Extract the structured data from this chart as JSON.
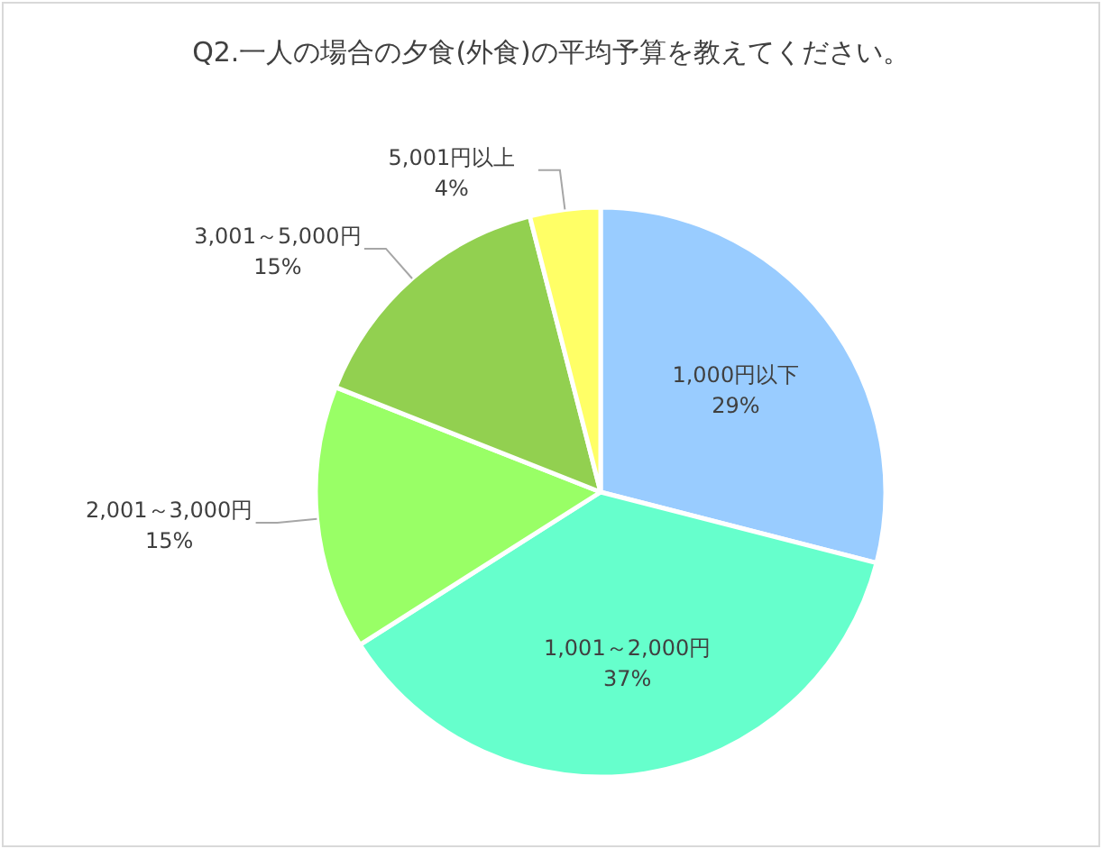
{
  "chart_data": {
    "type": "pie",
    "title": "Q2.一人の場合の夕食(外食)の平均予算を教えてください。",
    "categories": [
      "1,000円以下",
      "1,001～2,000円",
      "2,001～3,000円",
      "3,001～5,000円",
      "5,001円以上"
    ],
    "values": [
      29,
      37,
      15,
      15,
      4
    ],
    "colors": [
      "#99ccff",
      "#66ffcc",
      "#99ff66",
      "#92d050",
      "#ffff66"
    ],
    "value_labels": [
      "29%",
      "37%",
      "15%",
      "15%",
      "4%"
    ]
  }
}
